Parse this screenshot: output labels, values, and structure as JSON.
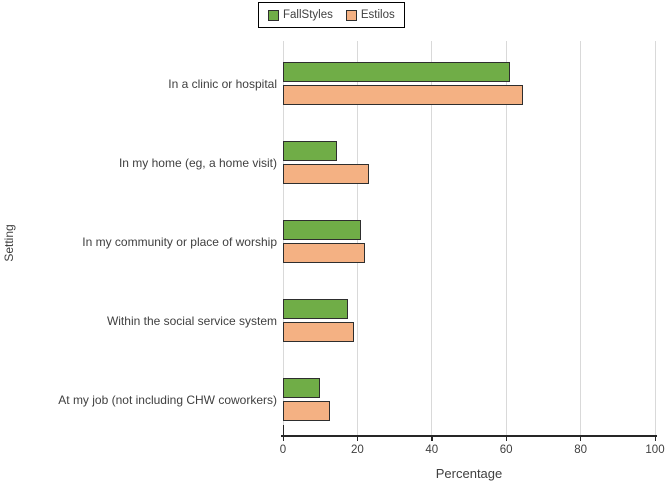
{
  "chart_data": {
    "type": "bar",
    "orientation": "horizontal",
    "title": "",
    "xlabel": "Percentage",
    "ylabel": "Setting",
    "xlim": [
      0,
      100
    ],
    "xticks": [
      0,
      20,
      40,
      60,
      80,
      100
    ],
    "grid": "vertical",
    "legend_position": "top",
    "categories": [
      "In a clinic or hospital",
      "In my home (eg, a home visit)",
      "In my community or place of worship",
      "Within the social service system",
      "At my job (not including CHW coworkers)"
    ],
    "series": [
      {
        "name": "FallStyles",
        "color": "#70AD47",
        "values": [
          61,
          14.5,
          21,
          17.5,
          10
        ]
      },
      {
        "name": "Estilos",
        "color": "#F4B183",
        "values": [
          64.5,
          23,
          22,
          19,
          12.5
        ]
      }
    ],
    "colors": {
      "bar_border": "#2e2e2e",
      "gridline": "#d9d9d9",
      "axis_line": "#262626",
      "text": "#404040",
      "legend_border": "#000000"
    }
  }
}
